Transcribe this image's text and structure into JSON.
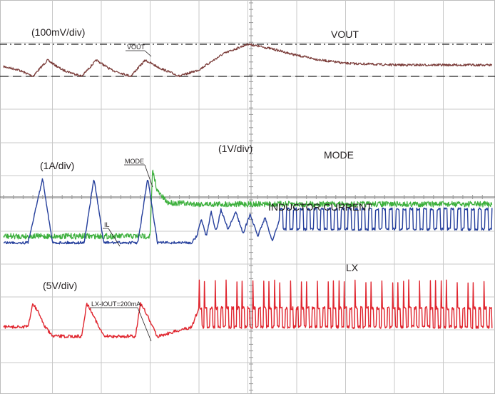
{
  "chart_data": {
    "type": "line",
    "x_range": [
      0,
      10
    ],
    "x_divisions": 10,
    "grid": true,
    "annotations": {
      "vout_scale": "(100mV/div)",
      "il_scale": "(1A/div)",
      "mode_scale": "(1V/div)",
      "lx_scale": "(5V/div)",
      "vout_marker": "VOUT",
      "mode_marker": "MODE",
      "il_marker": "IL",
      "lx_marker": "LX-IOUT=200mA"
    },
    "series": [
      {
        "name": "VOUT",
        "color": "#7a3b38",
        "segments": [
          [
            [
              0.0,
              0.15
            ],
            [
              0.3,
              0.05
            ],
            [
              0.6,
              -0.15
            ],
            [
              0.9,
              0.35
            ],
            [
              1.2,
              0.05
            ],
            [
              1.6,
              -0.15
            ],
            [
              1.9,
              0.35
            ],
            [
              2.2,
              0.05
            ],
            [
              2.6,
              -0.15
            ],
            [
              2.9,
              0.35
            ],
            [
              3.2,
              0.1
            ],
            [
              3.6,
              -0.15
            ],
            [
              4.0,
              0.05
            ],
            [
              4.5,
              0.55
            ],
            [
              5.0,
              0.85
            ],
            [
              5.5,
              0.7
            ],
            [
              6.0,
              0.5
            ],
            [
              6.5,
              0.35
            ],
            [
              7.0,
              0.25
            ],
            [
              8.0,
              0.2
            ],
            [
              9.0,
              0.2
            ],
            [
              10.0,
              0.2
            ]
          ]
        ]
      },
      {
        "name": "MODE",
        "color": "#3db03d",
        "segments": [
          [
            [
              0.0,
              0.0
            ],
            [
              3.0,
              0.0
            ],
            [
              3.05,
              2.05
            ],
            [
              3.15,
              1.4
            ],
            [
              3.35,
              1.05
            ],
            [
              4.0,
              1.0
            ],
            [
              10.0,
              1.0
            ]
          ]
        ]
      },
      {
        "name": "INDUCTOR CURRENT",
        "color": "#253f9c",
        "segments": [
          [
            [
              0.0,
              0.0
            ],
            [
              0.5,
              0.0
            ],
            [
              0.8,
              2.05
            ],
            [
              1.0,
              0.0
            ],
            [
              1.65,
              0.0
            ],
            [
              1.85,
              2.05
            ],
            [
              2.05,
              0.0
            ],
            [
              2.75,
              0.0
            ],
            [
              2.95,
              2.05
            ],
            [
              3.15,
              0.0
            ],
            [
              3.85,
              0.0
            ],
            [
              3.95,
              0.2
            ],
            [
              4.05,
              0.75
            ],
            [
              4.15,
              0.2
            ],
            [
              4.25,
              1.0
            ],
            [
              4.35,
              0.35
            ],
            [
              4.45,
              1.05
            ],
            [
              4.6,
              0.4
            ],
            [
              4.75,
              1.0
            ],
            [
              4.9,
              0.3
            ],
            [
              5.05,
              0.9
            ],
            [
              5.2,
              0.2
            ],
            [
              5.35,
              0.8
            ],
            [
              5.5,
              0.05
            ],
            [
              5.65,
              0.75
            ],
            [
              10.0,
              0.75
            ]
          ]
        ]
      },
      {
        "name": "LX",
        "color": "#e0262f",
        "segments": [
          [
            [
              0.0,
              0.0
            ],
            [
              0.5,
              0.0
            ],
            [
              0.6,
              1.5
            ],
            [
              0.7,
              1.0
            ],
            [
              0.85,
              0.0
            ],
            [
              1.0,
              -0.6
            ],
            [
              1.6,
              -0.6
            ],
            [
              1.7,
              1.5
            ],
            [
              1.8,
              1.0
            ],
            [
              1.95,
              0.0
            ],
            [
              2.05,
              -0.6
            ],
            [
              2.7,
              -0.6
            ],
            [
              2.8,
              1.5
            ],
            [
              2.9,
              1.0
            ],
            [
              3.05,
              0.0
            ],
            [
              3.15,
              -0.6
            ],
            [
              3.85,
              0.0
            ],
            [
              4.0,
              1.2
            ],
            [
              10.0,
              1.2
            ]
          ]
        ]
      }
    ]
  }
}
